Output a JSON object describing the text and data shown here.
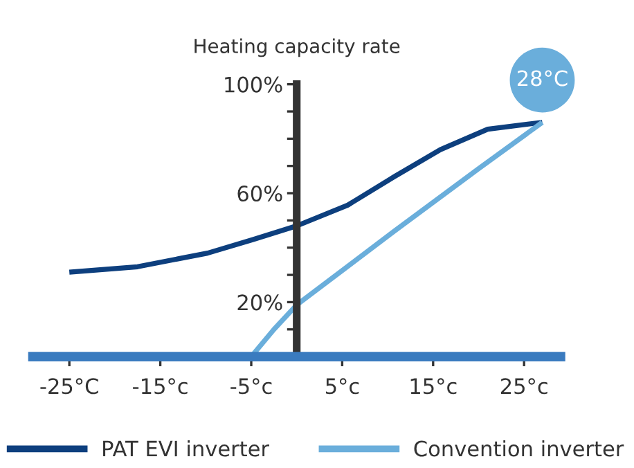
{
  "chart_data": {
    "type": "line",
    "ylabel": "Heating capacity rate",
    "xlim": [
      -29,
      29
    ],
    "xticks": [
      {
        "value": -25,
        "label": "-25°C"
      },
      {
        "value": -15,
        "label": "-15°c"
      },
      {
        "value": -5,
        "label": "-5°c"
      },
      {
        "value": 5,
        "label": "5°c"
      },
      {
        "value": 15,
        "label": "15°c"
      },
      {
        "value": 25,
        "label": "25°c"
      }
    ],
    "ylim": [
      0,
      100
    ],
    "yticks": [
      {
        "value": 10,
        "label": null
      },
      {
        "value": 20,
        "label": "20%"
      },
      {
        "value": 30,
        "label": null
      },
      {
        "value": 40,
        "label": null
      },
      {
        "value": 50,
        "label": null
      },
      {
        "value": 60,
        "label": "60%"
      },
      {
        "value": 70,
        "label": null
      },
      {
        "value": 80,
        "label": null
      },
      {
        "value": 90,
        "label": null
      },
      {
        "value": 100,
        "label": "100%"
      }
    ],
    "series": [
      {
        "name": "PAT EVI inverter",
        "color": "#0d3f7e",
        "x": [
          -25,
          -17.5,
          -9.8,
          -4.8,
          0,
          5.6,
          10.7,
          15.8,
          21,
          27
        ],
        "values": [
          31,
          33,
          38,
          43,
          48,
          55.6,
          66,
          76,
          83.5,
          86
        ]
      },
      {
        "name": "Convention inverter",
        "color": "#6aaedb",
        "x": [
          -5,
          -2.5,
          0,
          10.7,
          20,
          27
        ],
        "values": [
          0,
          10,
          19,
          46,
          69,
          86
        ]
      }
    ],
    "annotations": [
      {
        "text": "28°C",
        "x": 27,
        "y": 86
      }
    ],
    "grid": false,
    "legend": "bottom",
    "marker": "none",
    "line_style": "solid"
  }
}
